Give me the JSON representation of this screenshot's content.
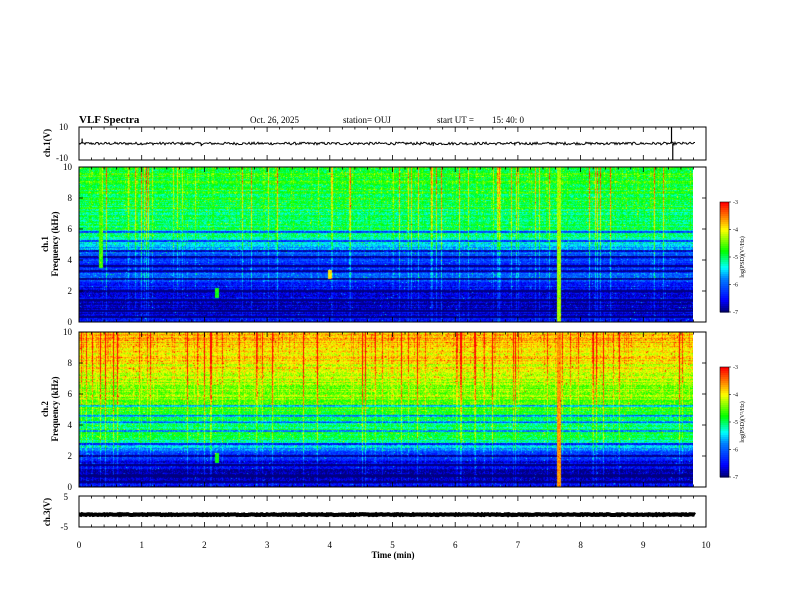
{
  "header": {
    "title": "VLF Spectra",
    "date": "Oct. 26, 2025",
    "station": "station= OUJ",
    "start_label": "start  UT =",
    "start_time": "15: 40: 0"
  },
  "chart_data": [
    {
      "id": "ch1-waveform",
      "type": "line",
      "ylabel": "ch.1(V)",
      "ylim": [
        -10,
        10
      ],
      "yticks": [
        "10",
        "-10"
      ],
      "xlim": [
        0,
        10
      ],
      "baseline": 0,
      "noise_amplitude": 0.8,
      "spikes": [
        [
          0.05,
          3.0
        ],
        [
          1.95,
          -1.6
        ],
        [
          5.65,
          -1.4
        ],
        [
          6.95,
          -1.2
        ],
        [
          9.45,
          10
        ],
        [
          9.47,
          -10
        ]
      ]
    },
    {
      "id": "ch1-spectrogram",
      "type": "heatmap",
      "ylabel": "ch.1\nFrequency (kHz)",
      "ylim": [
        0,
        10
      ],
      "yticks": [
        "0",
        "2",
        "4",
        "6",
        "8",
        "10"
      ],
      "xlim": [
        0,
        10
      ],
      "colorbar": {
        "label": "log(PSD)(V²/Hz)",
        "range": [
          -7,
          -3
        ],
        "ticks": [
          "-3",
          "-4",
          "-5",
          "-6",
          "-7"
        ]
      },
      "background_profile": [
        [
          0,
          -6.6
        ],
        [
          0.8,
          -6.9
        ],
        [
          1.4,
          -6.8
        ],
        [
          2.2,
          -6.6
        ],
        [
          2.8,
          -6.1
        ],
        [
          3.2,
          -5.7
        ],
        [
          3.6,
          -6.4
        ],
        [
          4.4,
          -6.1
        ],
        [
          5.2,
          -5.4
        ],
        [
          6.0,
          -5.1
        ],
        [
          7.0,
          -5.0
        ],
        [
          8.0,
          -4.9
        ],
        [
          10.0,
          -4.8
        ]
      ],
      "hum_bands_khz": [
        0.35,
        0.7,
        1.4,
        2.0,
        2.8,
        3.2,
        3.3,
        3.6,
        4.2,
        4.6,
        5.2,
        5.8
      ],
      "events": [
        {
          "t": 2.2,
          "f0": 1.6,
          "f1": 2.2,
          "level": -4.8
        },
        {
          "t": 7.65,
          "f0": 0,
          "f1": 10,
          "level": -4.3
        },
        {
          "t": 0.35,
          "f0": 3.5,
          "f1": 10,
          "level": -4.6
        },
        {
          "t": 4.0,
          "f0": 2.8,
          "f1": 3.4,
          "level": -3.9
        }
      ]
    },
    {
      "id": "ch2-spectrogram",
      "type": "heatmap",
      "ylabel": "ch.2\nFrequency (kHz)",
      "ylim": [
        0,
        10
      ],
      "yticks": [
        "0",
        "2",
        "4",
        "6",
        "8",
        "10"
      ],
      "xlim": [
        0,
        10
      ],
      "colorbar": {
        "label": "log(PSD)(V²/Hz)",
        "range": [
          -7,
          -3
        ],
        "ticks": [
          "-3",
          "-4",
          "-5",
          "-6",
          "-7"
        ]
      },
      "background_profile": [
        [
          0,
          -6.6
        ],
        [
          0.8,
          -6.9
        ],
        [
          1.5,
          -6.7
        ],
        [
          2.4,
          -6.0
        ],
        [
          3.0,
          -5.2
        ],
        [
          3.4,
          -4.9
        ],
        [
          3.8,
          -5.1
        ],
        [
          4.6,
          -4.9
        ],
        [
          5.5,
          -4.6
        ],
        [
          6.5,
          -4.3
        ],
        [
          7.5,
          -4.1
        ],
        [
          8.5,
          -3.9
        ],
        [
          10.0,
          -3.8
        ]
      ],
      "hum_bands_khz": [
        0.35,
        0.7,
        1.4,
        2.0,
        2.8,
        3.6,
        4.2,
        4.6,
        5.2
      ],
      "events": [
        {
          "t": 2.2,
          "f0": 1.6,
          "f1": 2.2,
          "level": -4.8
        },
        {
          "t": 7.65,
          "f0": 0,
          "f1": 10,
          "level": -3.6
        },
        {
          "t": 3.0,
          "f0": 3.2,
          "f1": 3.6,
          "level": -4.7
        }
      ]
    },
    {
      "id": "ch3-waveform",
      "type": "line",
      "ylabel": "ch.3(V)",
      "ylim": [
        -5,
        5
      ],
      "yticks": [
        "5",
        "-5"
      ],
      "xlim": [
        0,
        10
      ],
      "baseline": -1.0,
      "noise_amplitude": 0.15,
      "spikes": []
    }
  ],
  "x_axis": {
    "label": "Time (min)",
    "ticks": [
      "0",
      "1",
      "2",
      "3",
      "4",
      "5",
      "6",
      "7",
      "8",
      "9",
      "10"
    ],
    "range": [
      0,
      10
    ],
    "data_end": 9.83
  },
  "colors": {
    "axes": "#000000",
    "waveform": "#000000",
    "colormap": [
      "#000080",
      "#0000ff",
      "#0080ff",
      "#00ffff",
      "#00ff00",
      "#80ff00",
      "#ffff00",
      "#ff8000",
      "#ff0000",
      "#ffffff"
    ]
  }
}
